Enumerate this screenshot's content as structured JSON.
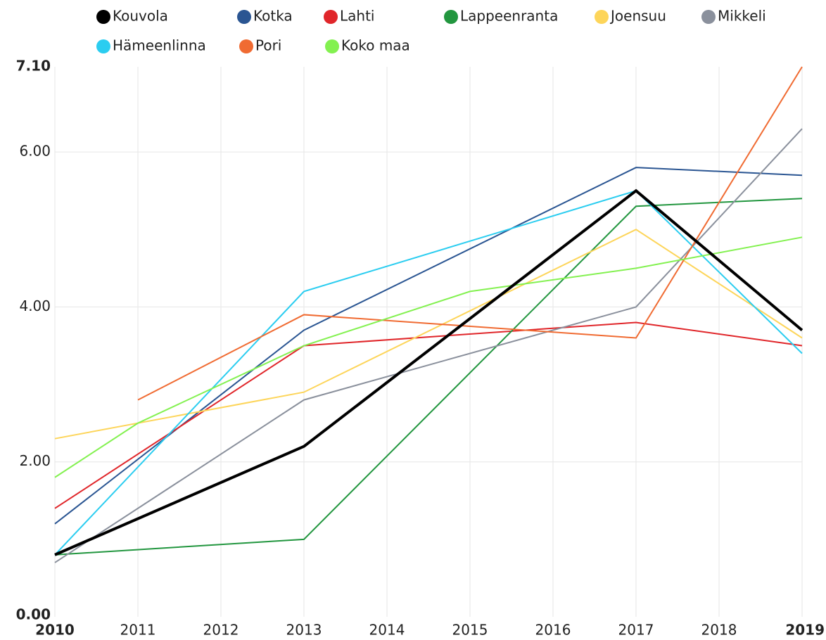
{
  "chart_data": {
    "type": "line",
    "xlim": [
      2010,
      2019
    ],
    "xticks": [
      2010,
      2011,
      2012,
      2013,
      2014,
      2015,
      2016,
      2017,
      2018,
      2019
    ],
    "ylim": [
      0,
      7.1
    ],
    "yticks": [
      {
        "value": 0,
        "label": "0.00"
      },
      {
        "value": 2,
        "label": "2.00"
      },
      {
        "value": 4,
        "label": "4.00"
      },
      {
        "value": 6,
        "label": "6.00"
      },
      {
        "value": 7.1,
        "label": "7.10"
      }
    ],
    "grid": true,
    "legend": "top",
    "series": [
      {
        "name": "Kouvola",
        "color": "#000000",
        "x": [
          2010,
          2013,
          2017,
          2019
        ],
        "values": [
          0.8,
          2.2,
          5.5,
          3.7
        ]
      },
      {
        "name": "Kotka",
        "color": "#2a5592",
        "x": [
          2010,
          2013,
          2017,
          2019
        ],
        "values": [
          1.2,
          3.7,
          5.8,
          5.7
        ]
      },
      {
        "name": "Lahti",
        "color": "#e0262a",
        "x": [
          2010,
          2013,
          2017,
          2019
        ],
        "values": [
          1.4,
          3.5,
          3.8,
          3.5
        ]
      },
      {
        "name": "Lappeenranta",
        "color": "#22963f",
        "x": [
          2010,
          2013,
          2017,
          2019
        ],
        "values": [
          0.8,
          1.0,
          5.3,
          5.4
        ]
      },
      {
        "name": "Joensuu",
        "color": "#fdd55a",
        "x": [
          2010,
          2013,
          2017,
          2019
        ],
        "values": [
          2.3,
          2.9,
          5.0,
          3.6
        ]
      },
      {
        "name": "Mikkeli",
        "color": "#8a909c",
        "x": [
          2010,
          2013,
          2017,
          2019
        ],
        "values": [
          0.7,
          2.8,
          4.0,
          6.3
        ]
      },
      {
        "name": "Hämeenlinna",
        "color": "#2bcdf0",
        "x": [
          2010,
          2013,
          2017,
          2019
        ],
        "values": [
          0.8,
          4.2,
          5.5,
          3.4
        ]
      },
      {
        "name": "Pori",
        "color": "#f06b32",
        "x": [
          2011,
          2013,
          2017,
          2019
        ],
        "values": [
          2.8,
          3.9,
          3.6,
          7.1
        ]
      },
      {
        "name": "Koko maa",
        "color": "#83f150",
        "x": [
          2010,
          2011,
          2013,
          2015,
          2017,
          2019
        ],
        "values": [
          1.8,
          2.5,
          3.5,
          4.2,
          4.5,
          4.9
        ]
      }
    ]
  }
}
